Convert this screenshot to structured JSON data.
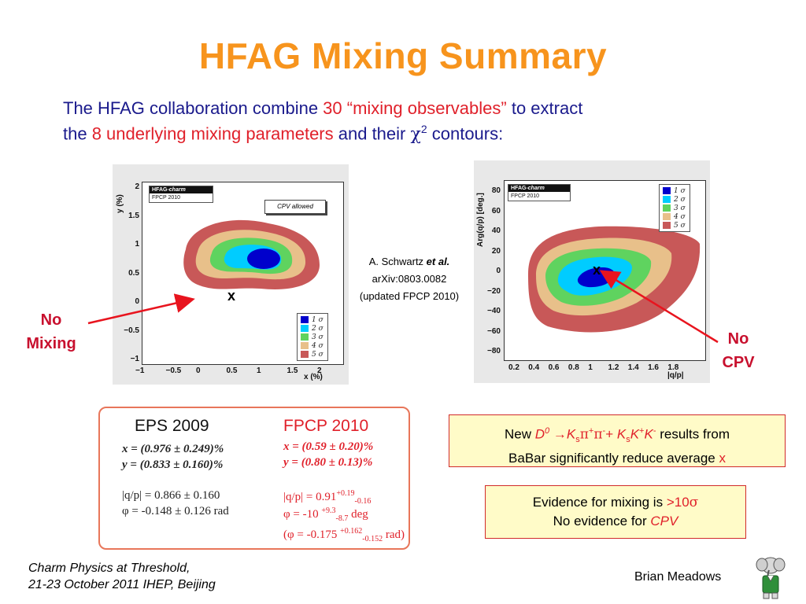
{
  "title": "HFAG Mixing Summary",
  "intro": {
    "line1_a": "The HFAG collaboration combine ",
    "line1_b": "30 “mixing observables”",
    "line1_c": " to extract",
    "line2_a": "the ",
    "line2_b": "8 underlying mixing parameters",
    "line2_c": " and their ",
    "chi": "χ",
    "chi_exp": "2",
    "line2_d": " contours:"
  },
  "colors": {
    "title": "#f7941d",
    "intro_text": "#1a1a8c",
    "highlight": "#e0202a",
    "sigma1": "#0000cc",
    "sigma2": "#00ccff",
    "sigma3": "#5fd35f",
    "sigma4": "#e8c08a",
    "sigma5": "#c85858",
    "arrow": "#e8141e"
  },
  "chart_data": [
    {
      "type": "contour",
      "xlabel": "x (%)",
      "ylabel": "y (%)",
      "xlim": [
        -1,
        2
      ],
      "ylim": [
        -1,
        2
      ],
      "x_ticks": [
        "−1",
        "−0.5",
        "0",
        "0.5",
        "1",
        "1.5",
        "2"
      ],
      "y_ticks": [
        "2",
        "1.5",
        "1",
        "0.5",
        "0",
        "−0.5",
        "−1"
      ],
      "badge_title": "HFAG-",
      "badge_title_sub": "charm",
      "badge_subtitle": "FPCP 2010",
      "box_label": "CPV allowed",
      "legend": [
        "1 σ",
        "2 σ",
        "3 σ",
        "4 σ",
        "5 σ"
      ],
      "marker_label": "x",
      "marker_point": [
        0,
        0
      ]
    },
    {
      "type": "contour",
      "xlabel": "|q/p|",
      "ylabel": "Arg(q/p) [deg.]",
      "xlim": [
        0.2,
        1.8
      ],
      "ylim": [
        -90,
        90
      ],
      "x_ticks": [
        "0.2",
        "0.4",
        "0.6",
        "0.8",
        "1",
        "1.2",
        "1.4",
        "1.6",
        "1.8"
      ],
      "y_ticks": [
        "80",
        "60",
        "40",
        "20",
        "0",
        "−20",
        "−40",
        "−60",
        "−80"
      ],
      "badge_title": "HFAG-",
      "badge_title_sub": "charm",
      "badge_subtitle": "FPCP  2010",
      "legend": [
        "1 σ",
        "2 σ",
        "3 σ",
        "4 σ",
        "5 σ"
      ],
      "marker_label": "x",
      "marker_point": [
        1,
        0
      ]
    }
  ],
  "note": {
    "line1_a": "A. Schwartz ",
    "line1_b": "et al.",
    "line2": "arXiv:0803.0082",
    "line3": "(updated FPCP 2010)"
  },
  "labels": {
    "no_mixing_1": "No",
    "no_mixing_2": "Mixing",
    "no_cpv_1": "No",
    "no_cpv_2": "CPV"
  },
  "comparison": {
    "eps_head": "EPS 2009",
    "fpcp_head": "FPCP 2010",
    "eps_x": "x = (0.976 ± 0.249)%",
    "eps_y": "y = (0.833 ± 0.160)%",
    "eps_qp": "|q/p| = 0.866 ± 0.160",
    "eps_phi": "φ = -0.148 ± 0.126 rad",
    "fpcp_x": "x = (0.59 ± 0.20)%",
    "fpcp_y": "y = (0.80 ± 0.13)%",
    "fpcp_qp_a": "|q/p| = 0.91",
    "fpcp_qp_sup": "+0.19",
    "fpcp_qp_sub": "-0.16",
    "fpcp_phi_a": "φ = -10 ",
    "fpcp_phi_sup": "+9.3",
    "fpcp_phi_sub": "-8.7",
    "fpcp_phi_b": " deg",
    "fpcp_rad_a": "(φ = -0.175 ",
    "fpcp_rad_sup": "+0.162",
    "fpcp_rad_sub": "-0.152",
    "fpcp_rad_b": " rad)"
  },
  "box1": {
    "a": "New ",
    "d0": "D",
    "d0_sup": "0",
    "arrow": " →",
    "k1": "K",
    "k1_sub": "s",
    "pi1": "π",
    "pi1_sup": "+",
    "pi2": "π",
    "pi2_sup": "-",
    "plus": "+ ",
    "k2": "K",
    "k2_sub": "s",
    "k3": "K",
    "k3_sup": "+",
    "k4": "K",
    "k4_sup": "-",
    "b": " results from",
    "line2_a": "BaBar significantly reduce average ",
    "line2_x": "x"
  },
  "box2": {
    "line1_a": "Evidence for mixing is ",
    "line1_b": ">10",
    "line1_sigma": "σ",
    "line2_a": "No evidence for ",
    "line2_b": "CPV"
  },
  "footer": {
    "left_1": "Charm Physics at Threshold,",
    "left_2": "21-23 October 2011 IHEP, Beijing",
    "right": "Brian Meadows"
  }
}
